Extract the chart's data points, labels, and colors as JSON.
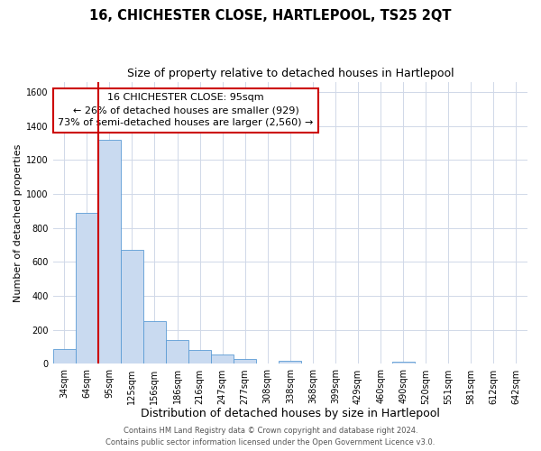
{
  "title": "16, CHICHESTER CLOSE, HARTLEPOOL, TS25 2QT",
  "subtitle": "Size of property relative to detached houses in Hartlepool",
  "xlabel": "Distribution of detached houses by size in Hartlepool",
  "ylabel": "Number of detached properties",
  "bar_labels": [
    "34sqm",
    "64sqm",
    "95sqm",
    "125sqm",
    "156sqm",
    "186sqm",
    "216sqm",
    "247sqm",
    "277sqm",
    "308sqm",
    "338sqm",
    "368sqm",
    "399sqm",
    "429sqm",
    "460sqm",
    "490sqm",
    "520sqm",
    "551sqm",
    "581sqm",
    "612sqm",
    "642sqm"
  ],
  "bar_values": [
    88,
    886,
    1316,
    672,
    252,
    143,
    83,
    55,
    30,
    0,
    20,
    0,
    0,
    0,
    0,
    15,
    0,
    0,
    0,
    0,
    0
  ],
  "bar_color": "#c9daf0",
  "bar_edge_color": "#5b9bd5",
  "highlight_line_index": 2,
  "highlight_line_color": "#cc0000",
  "annotation_line1": "16 CHICHESTER CLOSE: 95sqm",
  "annotation_line2": "← 26% of detached houses are smaller (929)",
  "annotation_line3": "73% of semi-detached houses are larger (2,560) →",
  "annotation_box_color": "#ffffff",
  "annotation_box_edge": "#cc0000",
  "ylim": [
    0,
    1660
  ],
  "yticks": [
    0,
    200,
    400,
    600,
    800,
    1000,
    1200,
    1400,
    1600
  ],
  "footer_line1": "Contains HM Land Registry data © Crown copyright and database right 2024.",
  "footer_line2": "Contains public sector information licensed under the Open Government Licence v3.0.",
  "bg_color": "#ffffff",
  "grid_color": "#d0d8e8",
  "title_fontsize": 10.5,
  "subtitle_fontsize": 9,
  "xlabel_fontsize": 9,
  "ylabel_fontsize": 8,
  "tick_fontsize": 7,
  "annotation_fontsize": 8,
  "footer_fontsize": 6
}
